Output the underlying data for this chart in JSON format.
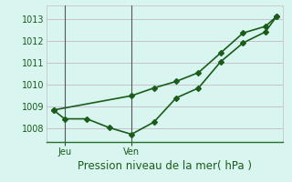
{
  "title": "Pression niveau de la mer( hPa )",
  "background_color": "#d8f5f0",
  "grid_color": "#c8b8c8",
  "line_color": "#1a5c1a",
  "yticks": [
    1008,
    1009,
    1010,
    1011,
    1012,
    1013
  ],
  "ylim": [
    1007.4,
    1013.6
  ],
  "xtick_labels": [
    "Jeu",
    "Ven"
  ],
  "xtick_positions": [
    0.5,
    3.5
  ],
  "xlim": [
    -0.3,
    10.3
  ],
  "line1_x": [
    0,
    0.5,
    1.5,
    2.5,
    3.5,
    4.5,
    5.5,
    6.5,
    7.5,
    8.5,
    9.5,
    10.0
  ],
  "line1_y": [
    1008.85,
    1008.45,
    1008.45,
    1008.05,
    1007.75,
    1008.3,
    1009.4,
    1009.85,
    1011.05,
    1011.9,
    1012.4,
    1013.1
  ],
  "line2_x": [
    0,
    3.5,
    4.5,
    5.5,
    6.5,
    7.5,
    8.5,
    9.5,
    10.0
  ],
  "line2_y": [
    1008.85,
    1009.5,
    1009.85,
    1010.15,
    1010.55,
    1011.45,
    1012.35,
    1012.65,
    1013.1
  ],
  "vline_x": [
    0.5,
    3.5
  ],
  "vline_color": "#555555",
  "marker": "D",
  "markersize": 3,
  "linewidth": 1.2,
  "title_fontsize": 8.5,
  "tick_fontsize": 7,
  "spine_color": "#2a6c2a",
  "axis_bottom_color": "#2a6c2a"
}
